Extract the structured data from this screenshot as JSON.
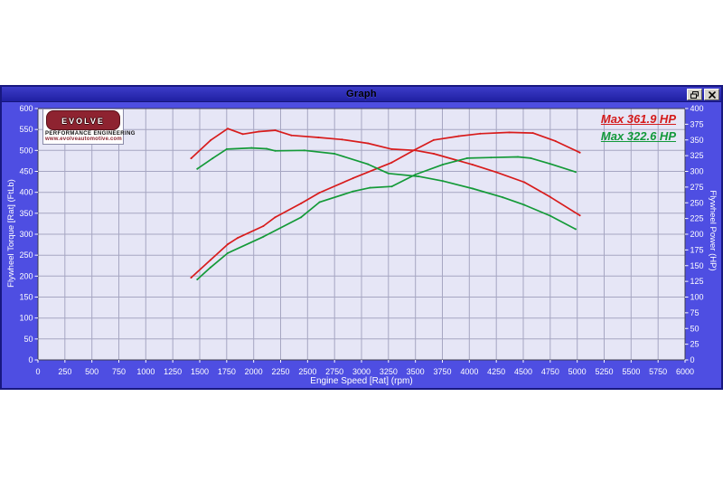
{
  "window": {
    "title": "Graph",
    "buttons": {
      "restore": "restore-window",
      "close": "close-window"
    }
  },
  "logo": {
    "brand": "evolve",
    "line1": "PERFORMANCE ENGINEERING",
    "line2": "www.evolveautomotive.com"
  },
  "legend": [
    {
      "label": "Max 361.9 HP",
      "color": "#d41a1a"
    },
    {
      "label": "Max 322.6 HP",
      "color": "#12993a"
    }
  ],
  "colors": {
    "panel": "#4e4ee2",
    "titlebar": "#2727ae",
    "plot_bg": "#e6e6f6",
    "grid": "#a6a6c2",
    "plot_border": "#3c3c50",
    "tick_text": "#ffffff",
    "red": "#d81c1c",
    "green": "#149a38"
  },
  "chart_data": {
    "type": "line",
    "title": "Graph",
    "xlabel": "Engine Speed [Rat] (rpm)",
    "ylabel_left": "Flywheel Torque [Rat] (FtLb)",
    "ylabel_right": "Flywheel Power (HP)",
    "xlim": [
      0,
      6000
    ],
    "ylim_left": [
      0,
      600
    ],
    "ylim_right": [
      0,
      400
    ],
    "x_ticks": [
      0,
      250,
      500,
      750,
      1000,
      1250,
      1500,
      1750,
      2000,
      2250,
      2500,
      2750,
      3000,
      3250,
      3500,
      3750,
      4000,
      4250,
      4500,
      4750,
      5000,
      5250,
      5500,
      5750,
      6000
    ],
    "y_left_ticks": [
      0,
      50,
      100,
      150,
      200,
      250,
      300,
      350,
      400,
      450,
      500,
      550,
      600
    ],
    "y_right_ticks": [
      0,
      25,
      50,
      75,
      100,
      125,
      150,
      175,
      200,
      225,
      250,
      275,
      300,
      325,
      350,
      375,
      400
    ],
    "grid": true,
    "legend_position": "top-right",
    "annotations": [
      "Max 361.9 HP",
      "Max 322.6 HP"
    ],
    "series": [
      {
        "name": "torque-red",
        "axis": "left",
        "color": "#d81c1c",
        "max": 552,
        "points": [
          [
            1420,
            481
          ],
          [
            1600,
            524
          ],
          [
            1760,
            552
          ],
          [
            1900,
            539
          ],
          [
            2050,
            545
          ],
          [
            2200,
            548
          ],
          [
            2350,
            536
          ],
          [
            2600,
            531
          ],
          [
            2820,
            526
          ],
          [
            3060,
            517
          ],
          [
            3280,
            503
          ],
          [
            3500,
            500
          ],
          [
            3670,
            492
          ],
          [
            4030,
            466
          ],
          [
            4250,
            448
          ],
          [
            4510,
            424
          ],
          [
            4750,
            389
          ],
          [
            5025,
            345
          ]
        ]
      },
      {
        "name": "power-red",
        "axis": "right",
        "color": "#d81c1c",
        "max": 361.9,
        "points": [
          [
            1420,
            131
          ],
          [
            1600,
            159
          ],
          [
            1760,
            184
          ],
          [
            1850,
            194
          ],
          [
            2090,
            213
          ],
          [
            2200,
            227
          ],
          [
            2440,
            249
          ],
          [
            2610,
            266
          ],
          [
            2920,
            289
          ],
          [
            3280,
            314
          ],
          [
            3490,
            334
          ],
          [
            3670,
            350
          ],
          [
            3900,
            356
          ],
          [
            4100,
            360
          ],
          [
            4370,
            362
          ],
          [
            4590,
            361
          ],
          [
            4800,
            348
          ],
          [
            5025,
            330
          ]
        ]
      },
      {
        "name": "torque-green",
        "axis": "left",
        "color": "#149a38",
        "max": 506,
        "points": [
          [
            1477,
            456
          ],
          [
            1620,
            481
          ],
          [
            1750,
            503
          ],
          [
            1980,
            506
          ],
          [
            2120,
            504
          ],
          [
            2200,
            499
          ],
          [
            2470,
            500
          ],
          [
            2750,
            492
          ],
          [
            3060,
            467
          ],
          [
            3250,
            445
          ],
          [
            3530,
            438
          ],
          [
            3755,
            427
          ],
          [
            4030,
            409
          ],
          [
            4310,
            388
          ],
          [
            4510,
            370
          ],
          [
            4750,
            344
          ],
          [
            4985,
            312
          ]
        ]
      },
      {
        "name": "power-green",
        "axis": "right",
        "color": "#149a38",
        "max": 322.6,
        "points": [
          [
            1477,
            128
          ],
          [
            1600,
            147
          ],
          [
            1760,
            170
          ],
          [
            2090,
            196
          ],
          [
            2440,
            227
          ],
          [
            2610,
            251
          ],
          [
            2920,
            268
          ],
          [
            3080,
            274
          ],
          [
            3280,
            276
          ],
          [
            3500,
            295
          ],
          [
            3755,
            311
          ],
          [
            3980,
            321
          ],
          [
            4200,
            322
          ],
          [
            4450,
            323
          ],
          [
            4570,
            321
          ],
          [
            4750,
            312
          ],
          [
            4985,
            299
          ]
        ]
      }
    ]
  }
}
